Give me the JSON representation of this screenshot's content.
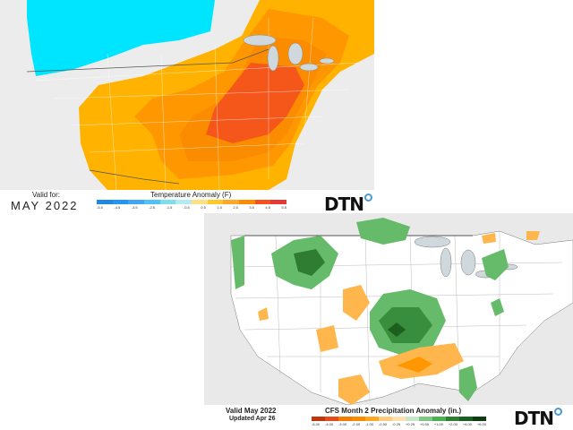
{
  "temperature_map": {
    "valid_label": "Valid for:",
    "valid_month": "MAY 2022",
    "legend_title": "Temperature Anomaly (F)",
    "legend_ticks": [
      "-5.5",
      "-4.5",
      "-3.5",
      "-2.5",
      "-1.5",
      "-0.5",
      "0.5",
      "1.5",
      "2.5",
      "3.5",
      "4.5",
      "5.5"
    ],
    "legend_colors": [
      "#1e88e5",
      "#2196f3",
      "#42a5f5",
      "#4fc3f7",
      "#80deea",
      "#b2ebf2",
      "#ffe082",
      "#ffca28",
      "#ffa726",
      "#fb8c00",
      "#f4511e",
      "#e53935"
    ],
    "logo": "DTN"
  },
  "precip_map": {
    "valid_label": "Valid May 2022",
    "updated_label": "Updated Apr 26",
    "legend_title": "CFS Month 2 Precipitation Anomaly (in.)",
    "legend_ticks": [
      "-6.00",
      "-4.00",
      "-3.00",
      "-2.00",
      "-1.00",
      "-0.50",
      "-0.25",
      "+0.25",
      "+0.50",
      "+1.00",
      "+2.00",
      "+4.00",
      "+6.00"
    ],
    "legend_colors": [
      "#bf360c",
      "#e64a19",
      "#f57c00",
      "#fb8c00",
      "#ffa726",
      "#ffcc80",
      "#ffe0b2",
      "#c8e6c9",
      "#81c784",
      "#4caf50",
      "#2e7d32",
      "#1b5e20",
      "#0d3b12"
    ],
    "logo": "DTN"
  }
}
